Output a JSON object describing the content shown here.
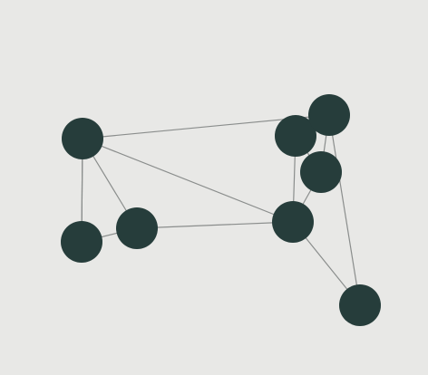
{
  "colors": {
    "background": "#e8e8e6",
    "node_fill": "#263d3b",
    "edge_stroke": "#8a8d8c"
  },
  "graph": {
    "nodes": [
      {
        "id": "n1"
      },
      {
        "id": "n2"
      },
      {
        "id": "n3"
      },
      {
        "id": "n4"
      },
      {
        "id": "n5"
      },
      {
        "id": "n6"
      },
      {
        "id": "n7"
      },
      {
        "id": "n8"
      },
      {
        "id": "n9"
      }
    ],
    "edges": [
      [
        "n1",
        "n5"
      ],
      [
        "n1",
        "n2"
      ],
      [
        "n1",
        "n3"
      ],
      [
        "n1",
        "n8"
      ],
      [
        "n2",
        "n3"
      ],
      [
        "n3",
        "n8"
      ],
      [
        "n4",
        "n5"
      ],
      [
        "n4",
        "n6"
      ],
      [
        "n4",
        "n8"
      ],
      [
        "n5",
        "n6"
      ],
      [
        "n5",
        "n9"
      ],
      [
        "n6",
        "n8"
      ],
      [
        "n8",
        "n9"
      ],
      [
        "n2",
        "n1"
      ]
    ]
  }
}
